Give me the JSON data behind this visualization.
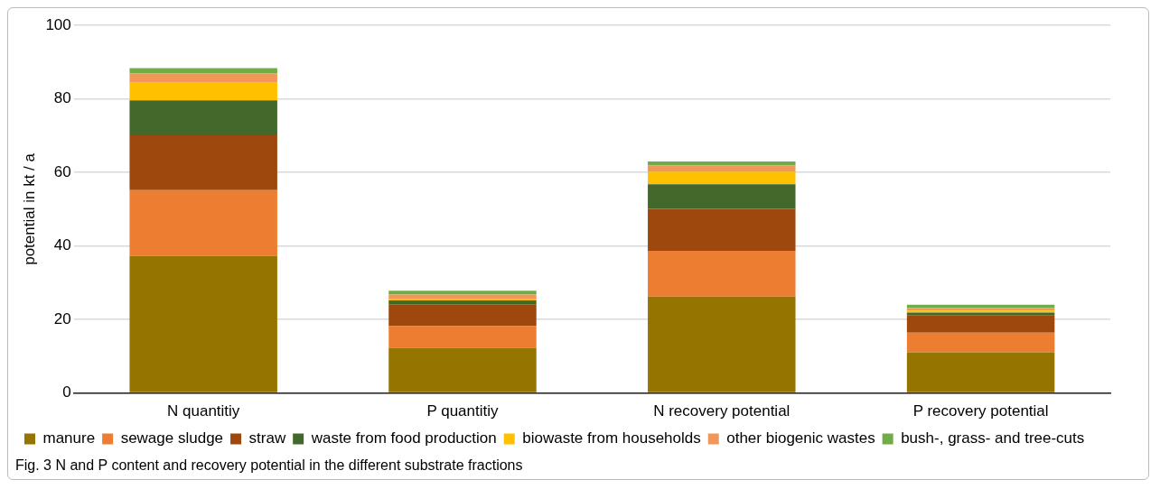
{
  "chart_data": {
    "type": "bar",
    "stacked": true,
    "ylabel": "potential in kt / a",
    "categories": [
      "N quantitiy",
      "P quantitiy",
      "N recovery potential",
      "P recovery potential"
    ],
    "series": [
      {
        "name": "manure",
        "color": "#967400",
        "values": [
          37.3,
          12.3,
          26.2,
          11.1
        ]
      },
      {
        "name": "sewage sludge",
        "color": "#ed7d31",
        "values": [
          17.9,
          5.9,
          12.5,
          5.3
        ]
      },
      {
        "name": "straw",
        "color": "#9e480e",
        "values": [
          14.9,
          5.8,
          11.4,
          4.7
        ]
      },
      {
        "name": "waste from food production",
        "color": "#43682b",
        "values": [
          9.5,
          1.2,
          6.7,
          0.8
        ]
      },
      {
        "name": "biowaste from households",
        "color": "#ffc000",
        "values": [
          4.8,
          0.5,
          3.4,
          0.5
        ]
      },
      {
        "name": "other biogenic wastes",
        "color": "#f1975a",
        "values": [
          2.5,
          1.1,
          1.7,
          0.7
        ]
      },
      {
        "name": "bush-, grass- and tree-cuts",
        "color": "#70ad47",
        "values": [
          1.5,
          1.0,
          1.1,
          0.9
        ]
      }
    ],
    "ylim": [
      0,
      100
    ],
    "yticks": [
      0,
      20,
      40,
      60,
      80,
      100
    ],
    "grid": "y",
    "legend": "bottom",
    "annotations": [
      "Fig. 3  N and P content and recovery potential in the different substrate fractions"
    ]
  }
}
